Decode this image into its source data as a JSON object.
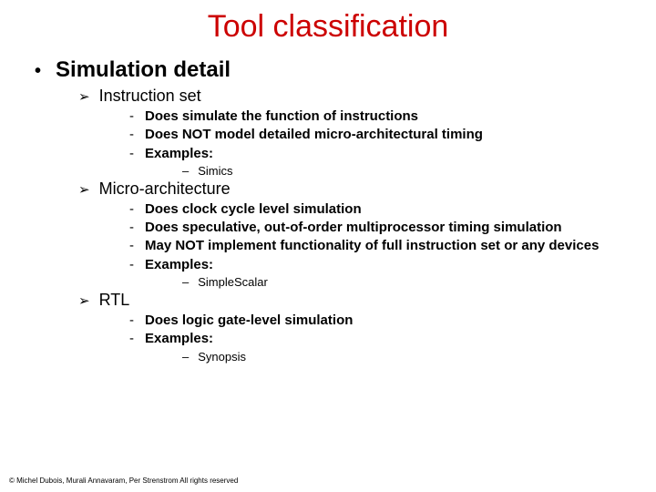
{
  "title": "Tool classification",
  "main_bullet": "Simulation detail",
  "sections": {
    "instruction_set": {
      "label": "Instruction set",
      "items": [
        "Does simulate the function of instructions",
        "Does NOT model detailed micro-architectural timing",
        "Examples:"
      ],
      "example": "Simics"
    },
    "micro_architecture": {
      "label": "Micro-architecture",
      "items": [
        "Does clock cycle level simulation",
        "Does speculative, out-of-order multiprocessor timing simulation",
        "May NOT implement functionality of full instruction set or any devices",
        "Examples:"
      ],
      "example": "SimpleScalar"
    },
    "rtl": {
      "label": "RTL",
      "items": [
        "Does logic gate-level simulation",
        "Examples:"
      ],
      "example": "Synopsis"
    }
  },
  "footer": "© Michel Dubois, Murali Annavaram, Per Strenstrom All rights reserved",
  "colors": {
    "title_color": "#cc0000",
    "text_color": "#000000",
    "background": "#ffffff"
  }
}
